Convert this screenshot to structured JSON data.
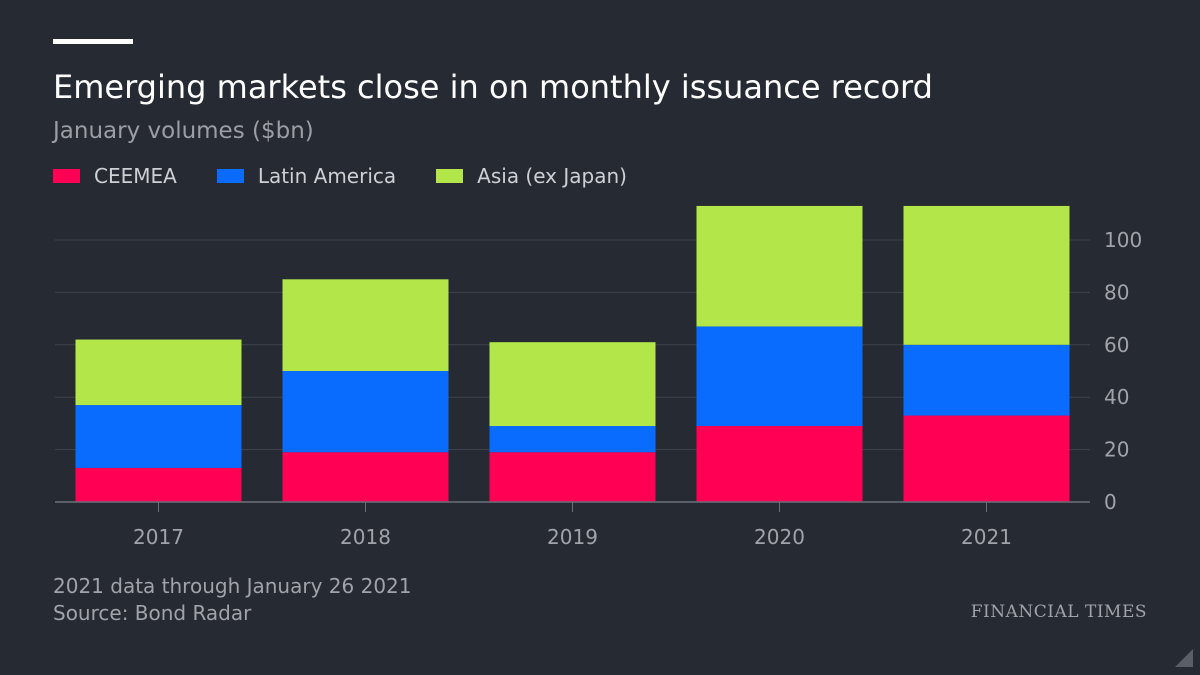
{
  "header": {
    "title": "Emerging markets close in on monthly issuance record",
    "subtitle": "January volumes ($bn)"
  },
  "legend": [
    {
      "label": "CEEMEA",
      "color": "#ff0055"
    },
    {
      "label": "Latin America",
      "color": "#0a6cff"
    },
    {
      "label": "Asia (ex Japan)",
      "color": "#b3e648"
    }
  ],
  "chart_data": {
    "type": "bar",
    "stacked": true,
    "categories": [
      "2017",
      "2018",
      "2019",
      "2020",
      "2021"
    ],
    "series": [
      {
        "name": "CEEMEA",
        "color": "#ff0055",
        "values": [
          13,
          19,
          19,
          29,
          33
        ]
      },
      {
        "name": "Latin America",
        "color": "#0a6cff",
        "values": [
          24,
          31,
          10,
          38,
          27
        ]
      },
      {
        "name": "Asia (ex Japan)",
        "color": "#b3e648",
        "values": [
          25,
          35,
          32,
          46,
          53
        ]
      }
    ],
    "yticks": [
      0,
      20,
      40,
      60,
      80,
      100
    ],
    "ylim": [
      0,
      115
    ],
    "y_axis_position": "right",
    "grid": true
  },
  "footer": {
    "note": "2021 data through January 26 2021",
    "source": "Source: Bond Radar",
    "brand": "FINANCIAL TIMES"
  }
}
